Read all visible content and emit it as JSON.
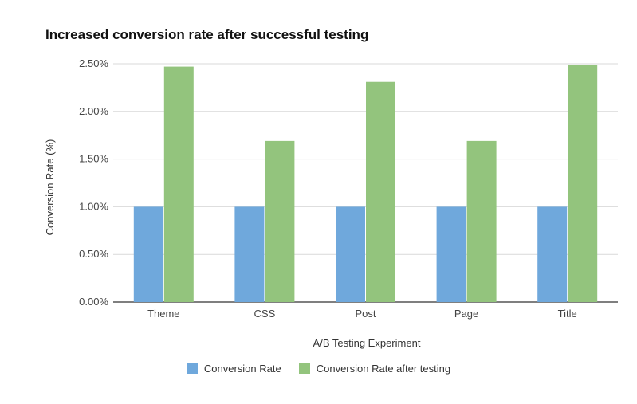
{
  "chart_data": {
    "type": "bar",
    "title": "Increased conversion rate after successful testing",
    "xlabel": "A/B Testing Experiment",
    "ylabel": "Conversion Rate (%)",
    "categories": [
      "Theme",
      "CSS",
      "Post",
      "Page",
      "Title"
    ],
    "series": [
      {
        "name": "Conversion Rate",
        "color": "#6fa8dc",
        "values": [
          1.0,
          1.0,
          1.0,
          1.0,
          1.0
        ]
      },
      {
        "name": "Conversion Rate after testing",
        "color": "#93c47d",
        "values": [
          2.47,
          1.69,
          2.31,
          1.69,
          2.49
        ]
      }
    ],
    "ylim": [
      0,
      2.5
    ],
    "yticks": [
      "0.00%",
      "0.50%",
      "1.00%",
      "1.50%",
      "2.00%",
      "2.50%"
    ],
    "grid": true,
    "legend": "bottom"
  }
}
